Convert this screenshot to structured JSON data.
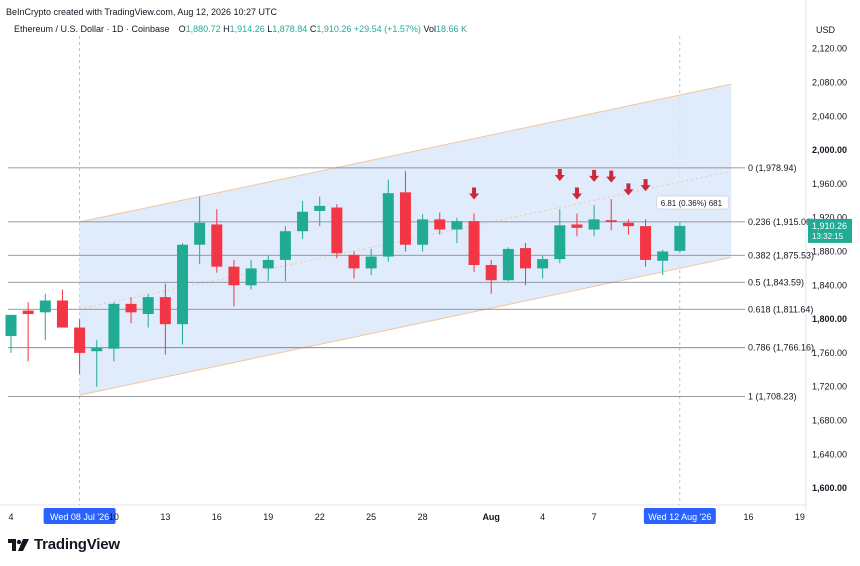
{
  "header": {
    "creator_line": "BeInCrypto created with TradingView.com, Aug 12, 2026 10:27 UTC",
    "symbol": "Ethereum / U.S. Dollar · 1D · Coinbase",
    "open_label": "O",
    "open": "1,880.72",
    "high_label": "H",
    "high": "1,914.26",
    "low_label": "L",
    "low": "1,878.84",
    "close_label": "C",
    "close": "1,910.26",
    "change": "+29.54 (+1.57%)",
    "vol_label": "Vol",
    "vol": "18.66 K"
  },
  "brand": {
    "name": "TradingView"
  },
  "chart_data": {
    "type": "candlestick",
    "currency_label": "USD",
    "ylim": [
      1580,
      2170
    ],
    "y_ticks": [
      {
        "v": 2120,
        "label": "2,120.00"
      },
      {
        "v": 2080,
        "label": "2,080.00"
      },
      {
        "v": 2040,
        "label": "2,040.00"
      },
      {
        "v": 2000,
        "label": "2,000.00",
        "bold": true
      },
      {
        "v": 1960,
        "label": "1,960.00"
      },
      {
        "v": 1920,
        "label": "1,920.00"
      },
      {
        "v": 1880,
        "label": "1,880.00"
      },
      {
        "v": 1840,
        "label": "1,840.00"
      },
      {
        "v": 1800,
        "label": "1,800.00",
        "bold": true
      },
      {
        "v": 1760,
        "label": "1,760.00"
      },
      {
        "v": 1720,
        "label": "1,720.00"
      },
      {
        "v": 1680,
        "label": "1,680.00"
      },
      {
        "v": 1640,
        "label": "1,640.00"
      },
      {
        "v": 1600,
        "label": "1,600.00",
        "bold": true
      }
    ],
    "x_ticks": [
      {
        "i": 0,
        "label": "4"
      },
      {
        "i": 4,
        "label": "Wed 08 Jul '26",
        "highlight": true
      },
      {
        "i": 6,
        "label": "10"
      },
      {
        "i": 9,
        "label": "13"
      },
      {
        "i": 12,
        "label": "16"
      },
      {
        "i": 15,
        "label": "19"
      },
      {
        "i": 18,
        "label": "22"
      },
      {
        "i": 21,
        "label": "25"
      },
      {
        "i": 24,
        "label": "28"
      },
      {
        "i": 28,
        "label": "Aug",
        "bold": true
      },
      {
        "i": 31,
        "label": "4"
      },
      {
        "i": 34,
        "label": "7"
      },
      {
        "i": 39,
        "label": "Wed 12 Aug '26",
        "highlight": true
      },
      {
        "i": 43,
        "label": "16"
      },
      {
        "i": 46,
        "label": "19"
      }
    ],
    "candles": [
      {
        "o": 1780,
        "h": 1805,
        "l": 1760,
        "c": 1805
      },
      {
        "o": 1810,
        "h": 1820,
        "l": 1750,
        "c": 1806
      },
      {
        "o": 1808,
        "h": 1830,
        "l": 1775,
        "c": 1822
      },
      {
        "o": 1822,
        "h": 1835,
        "l": 1790,
        "c": 1790
      },
      {
        "o": 1790,
        "h": 1800,
        "l": 1735,
        "c": 1760
      },
      {
        "o": 1762,
        "h": 1775,
        "l": 1720,
        "c": 1766
      },
      {
        "o": 1765,
        "h": 1820,
        "l": 1750,
        "c": 1818
      },
      {
        "o": 1818,
        "h": 1826,
        "l": 1795,
        "c": 1808
      },
      {
        "o": 1806,
        "h": 1830,
        "l": 1790,
        "c": 1826
      },
      {
        "o": 1826,
        "h": 1842,
        "l": 1758,
        "c": 1794
      },
      {
        "o": 1794,
        "h": 1890,
        "l": 1770,
        "c": 1888
      },
      {
        "o": 1888,
        "h": 1945,
        "l": 1865,
        "c": 1914
      },
      {
        "o": 1912,
        "h": 1930,
        "l": 1855,
        "c": 1862
      },
      {
        "o": 1862,
        "h": 1870,
        "l": 1815,
        "c": 1840
      },
      {
        "o": 1840,
        "h": 1870,
        "l": 1835,
        "c": 1860
      },
      {
        "o": 1860,
        "h": 1875,
        "l": 1845,
        "c": 1870
      },
      {
        "o": 1870,
        "h": 1910,
        "l": 1845,
        "c": 1904
      },
      {
        "o": 1904,
        "h": 1940,
        "l": 1895,
        "c": 1927
      },
      {
        "o": 1928,
        "h": 1945,
        "l": 1910,
        "c": 1934
      },
      {
        "o": 1932,
        "h": 1936,
        "l": 1872,
        "c": 1878
      },
      {
        "o": 1876,
        "h": 1880,
        "l": 1848,
        "c": 1860
      },
      {
        "o": 1860,
        "h": 1883,
        "l": 1852,
        "c": 1874
      },
      {
        "o": 1874,
        "h": 1965,
        "l": 1868,
        "c": 1949
      },
      {
        "o": 1950,
        "h": 1975,
        "l": 1880,
        "c": 1888
      },
      {
        "o": 1888,
        "h": 1924,
        "l": 1880,
        "c": 1918
      },
      {
        "o": 1918,
        "h": 1926,
        "l": 1900,
        "c": 1906
      },
      {
        "o": 1906,
        "h": 1920,
        "l": 1890,
        "c": 1916
      },
      {
        "o": 1916,
        "h": 1925,
        "l": 1856,
        "c": 1864
      },
      {
        "o": 1864,
        "h": 1870,
        "l": 1830,
        "c": 1846
      },
      {
        "o": 1846,
        "h": 1885,
        "l": 1845,
        "c": 1883
      },
      {
        "o": 1884,
        "h": 1890,
        "l": 1840,
        "c": 1860
      },
      {
        "o": 1860,
        "h": 1875,
        "l": 1848,
        "c": 1871
      },
      {
        "o": 1871,
        "h": 1930,
        "l": 1866,
        "c": 1911
      },
      {
        "o": 1912,
        "h": 1925,
        "l": 1898,
        "c": 1908
      },
      {
        "o": 1906,
        "h": 1935,
        "l": 1898,
        "c": 1918
      },
      {
        "o": 1917,
        "h": 1942,
        "l": 1905,
        "c": 1915
      },
      {
        "o": 1914,
        "h": 1918,
        "l": 1900,
        "c": 1910
      },
      {
        "o": 1910,
        "h": 1918,
        "l": 1862,
        "c": 1870
      },
      {
        "o": 1869,
        "h": 1882,
        "l": 1852,
        "c": 1880
      },
      {
        "o": 1880.72,
        "h": 1914.26,
        "l": 1878.84,
        "c": 1910.26
      }
    ],
    "fib_levels": [
      {
        "ratio": "0",
        "price": 1978.94,
        "label": "0 (1,978.94)"
      },
      {
        "ratio": "0.236",
        "price": 1915.06,
        "label": "0.236 (1,915.06)"
      },
      {
        "ratio": "0.382",
        "price": 1875.53,
        "label": "0.382 (1,875.53)"
      },
      {
        "ratio": "0.5",
        "price": 1843.59,
        "label": "0.5 (1,843.59)"
      },
      {
        "ratio": "0.618",
        "price": 1811.64,
        "label": "0.618 (1,811.64)"
      },
      {
        "ratio": "0.786",
        "price": 1766.16,
        "label": "0.786 (1,766.16)"
      },
      {
        "ratio": "1",
        "price": 1708.23,
        "label": "1 (1,708.23)"
      }
    ],
    "channel": {
      "upper": [
        {
          "i": 4,
          "v": 1915
        },
        {
          "i": 42,
          "v": 2078
        }
      ],
      "lower": [
        {
          "i": 4,
          "v": 1710
        },
        {
          "i": 42,
          "v": 1873
        }
      ],
      "mid_dotted": [
        {
          "i": 4,
          "v": 1812
        },
        {
          "i": 42,
          "v": 1975
        }
      ]
    },
    "channel_fill": "#dbe7fb",
    "channel_edge": "#f2c79a",
    "arrows": [
      {
        "i": 27,
        "v": 1945
      },
      {
        "i": 32,
        "v": 1967
      },
      {
        "i": 33,
        "v": 1945
      },
      {
        "i": 34,
        "v": 1966
      },
      {
        "i": 35,
        "v": 1965
      },
      {
        "i": 36,
        "v": 1950
      },
      {
        "i": 37,
        "v": 1955
      }
    ],
    "price_label": {
      "value": "1,910.26",
      "countdown": "13:32:15",
      "color": "#22ab94"
    },
    "measure": {
      "text": "6.81 (0.36%) 681",
      "i": 38,
      "v": 1935
    },
    "up_color": "#22ab94",
    "down_color": "#f23645",
    "arrow_color": "#c9293a"
  }
}
